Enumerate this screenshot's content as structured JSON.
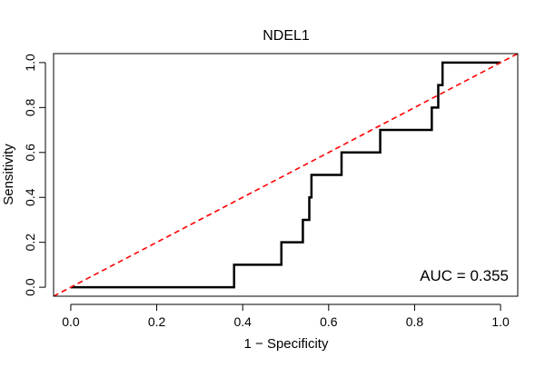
{
  "chart_data": {
    "type": "line",
    "title": "NDEL1",
    "xlabel": "1 − Specificity",
    "ylabel": "Sensitivity",
    "xlim": [
      -0.04,
      1.04
    ],
    "ylim": [
      -0.04,
      1.04
    ],
    "x_ticks": [
      0.0,
      0.2,
      0.4,
      0.6,
      0.8,
      1.0
    ],
    "y_ticks": [
      0.0,
      0.2,
      0.4,
      0.6,
      0.8,
      1.0
    ],
    "x_tick_labels": [
      "0.0",
      "0.2",
      "0.4",
      "0.6",
      "0.8",
      "1.0"
    ],
    "y_tick_labels": [
      "0.0",
      "0.2",
      "0.4",
      "0.6",
      "0.8",
      "1.0"
    ],
    "grid": false,
    "annotation": "AUC = 0.355",
    "series": [
      {
        "color": "#000000",
        "style": "solid",
        "x": [
          0.0,
          0.38,
          0.38,
          0.49,
          0.49,
          0.54,
          0.54,
          0.555,
          0.555,
          0.56,
          0.56,
          0.63,
          0.63,
          0.72,
          0.72,
          0.84,
          0.84,
          0.855,
          0.855,
          0.865,
          0.865,
          1.0
        ],
        "y": [
          0.0,
          0.0,
          0.1,
          0.1,
          0.2,
          0.2,
          0.3,
          0.3,
          0.4,
          0.4,
          0.5,
          0.5,
          0.6,
          0.6,
          0.7,
          0.7,
          0.8,
          0.8,
          0.9,
          0.9,
          1.0,
          1.0
        ]
      },
      {
        "color": "#ff0000",
        "style": "dashed",
        "x": [
          -0.04,
          1.04
        ],
        "y": [
          -0.04,
          1.04
        ]
      }
    ]
  }
}
